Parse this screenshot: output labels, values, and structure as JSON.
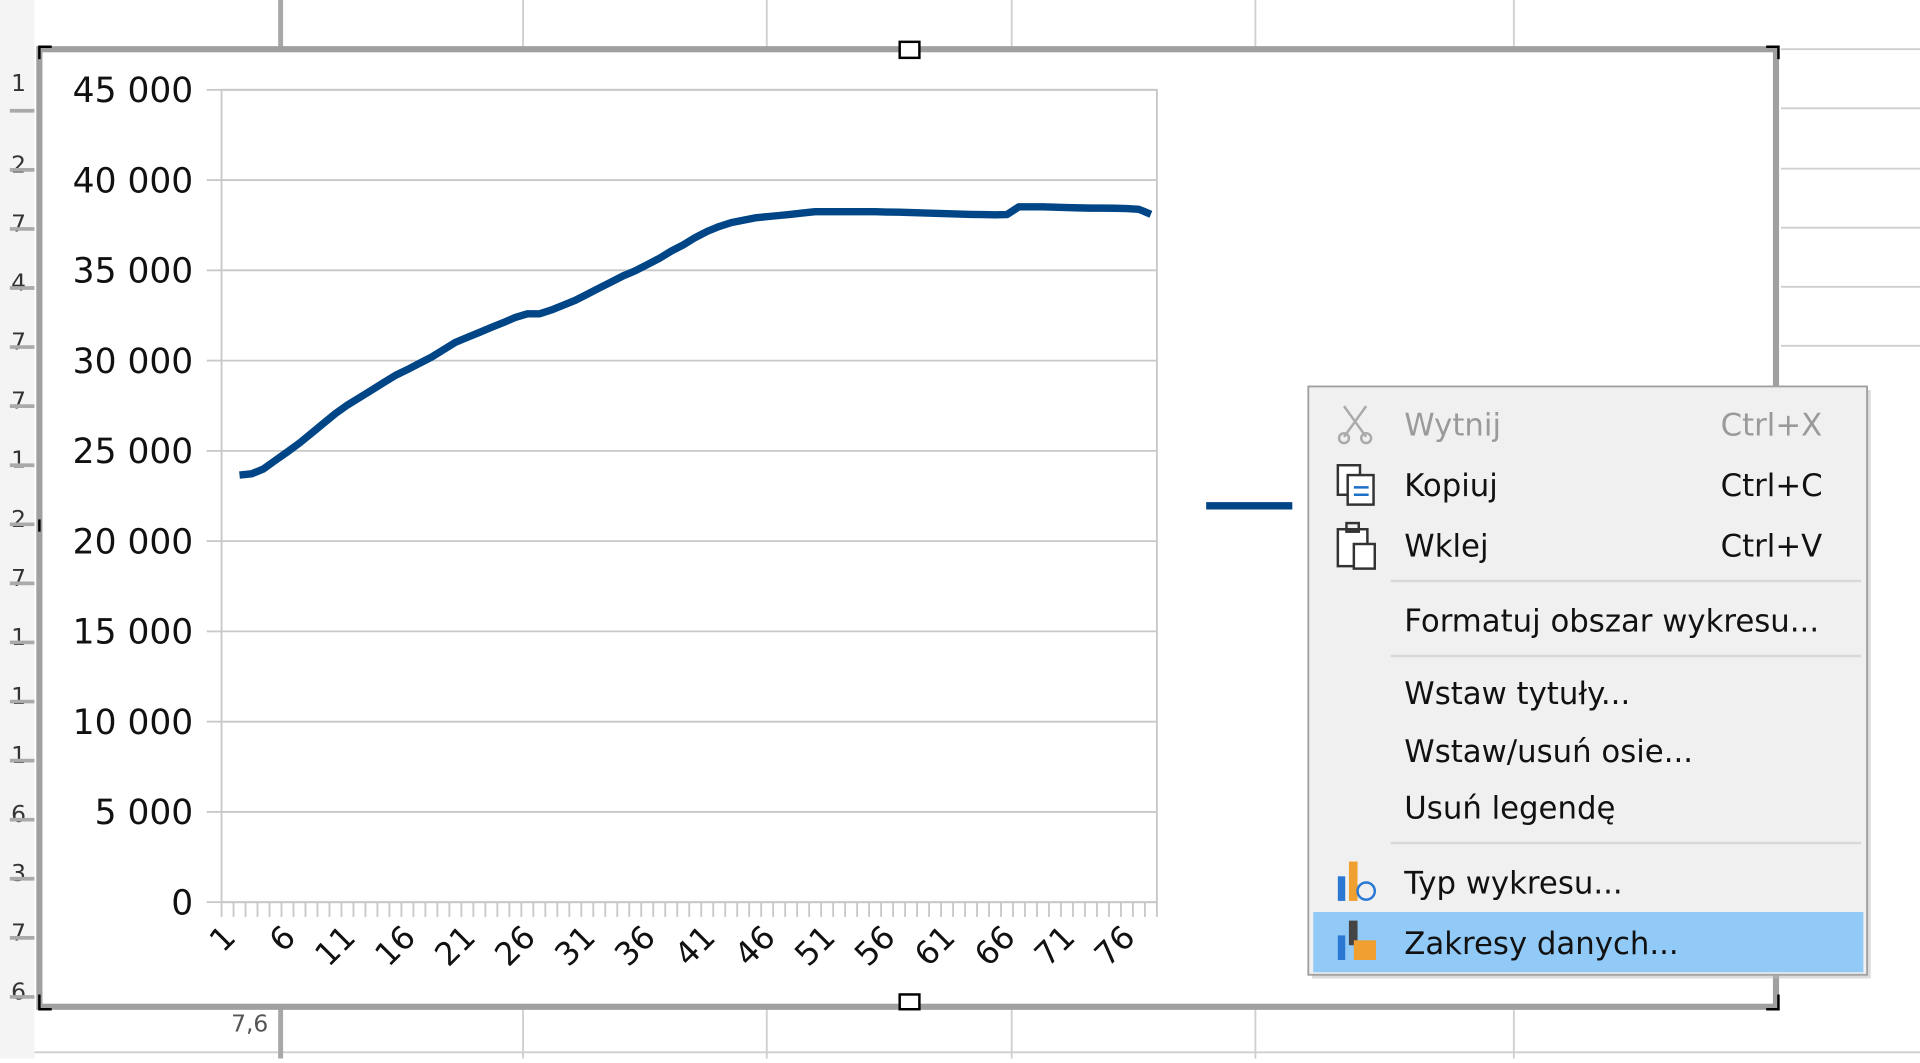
{
  "spreadsheet": {
    "row_labels": [
      "1",
      "2",
      "7",
      "4",
      "7",
      "7",
      "1",
      "2",
      "7",
      "1",
      "1",
      "1",
      "6",
      "3",
      "7",
      "6"
    ],
    "cell_text": "7,6"
  },
  "chart_data": {
    "type": "line",
    "color": "#004586",
    "grid": true,
    "categories": [
      "1",
      null,
      null,
      null,
      null,
      "6",
      null,
      null,
      null,
      null,
      "11",
      null,
      null,
      null,
      null,
      "16",
      null,
      null,
      null,
      null,
      "21",
      null,
      null,
      null,
      null,
      "26",
      null,
      null,
      null,
      null,
      "31",
      null,
      null,
      null,
      null,
      "36",
      null,
      null,
      null,
      null,
      "41",
      null,
      null,
      null,
      null,
      "46",
      null,
      null,
      null,
      null,
      "51",
      null,
      null,
      null,
      null,
      "56",
      null,
      null,
      null,
      null,
      "61",
      null,
      null,
      null,
      null,
      "66",
      null,
      null,
      null,
      null,
      "71",
      null,
      null,
      null,
      null,
      "76",
      null,
      null
    ],
    "values": [
      null,
      23660,
      23730,
      24000,
      24480,
      24950,
      25430,
      25980,
      26520,
      27070,
      27540,
      27950,
      28360,
      28770,
      29180,
      29500,
      29850,
      30190,
      30600,
      31010,
      31290,
      31560,
      31840,
      32110,
      32390,
      32590,
      32590,
      32800,
      33070,
      33340,
      33680,
      34020,
      34360,
      34700,
      34980,
      35320,
      35660,
      36070,
      36410,
      36820,
      37160,
      37430,
      37640,
      37770,
      37910,
      37980,
      38040,
      38110,
      38180,
      38250,
      38250,
      38250,
      38250,
      38250,
      38250,
      38230,
      38220,
      38200,
      38180,
      38160,
      38140,
      38120,
      38100,
      38090,
      38080,
      38090,
      38520,
      38520,
      38520,
      38500,
      38480,
      38460,
      38450,
      38450,
      38440,
      38420,
      38380,
      38110
    ],
    "ylim": [
      0,
      45000
    ],
    "yticks": [
      0,
      {
        "value": 5000,
        "label": "5 000"
      },
      {
        "value": 10000,
        "label": "10 000"
      },
      {
        "value": 15000,
        "label": "15 000"
      },
      {
        "value": 20000,
        "label": "20 000"
      },
      {
        "value": 25000,
        "label": "25 000"
      },
      {
        "value": 30000,
        "label": "30 000"
      },
      {
        "value": 35000,
        "label": "35 000"
      },
      {
        "value": 40000,
        "label": "40 000"
      },
      {
        "value": 45000,
        "label": "45 000"
      }
    ]
  },
  "context_menu": {
    "items": [
      {
        "label": "Wytnij",
        "shortcut": "Ctrl+X"
      },
      {
        "label": "Kopiuj",
        "shortcut": "Ctrl+C"
      },
      {
        "label": "Wklej",
        "shortcut": "Ctrl+V"
      },
      {
        "label": "Formatuj obszar wykresu..."
      },
      {
        "label": "Wstaw tytuły..."
      },
      {
        "label": "Wstaw/usuń osie..."
      },
      {
        "label": "Usuń legendę"
      },
      {
        "label": "Typ wykresu..."
      },
      {
        "label": "Zakresy danych..."
      }
    ]
  }
}
